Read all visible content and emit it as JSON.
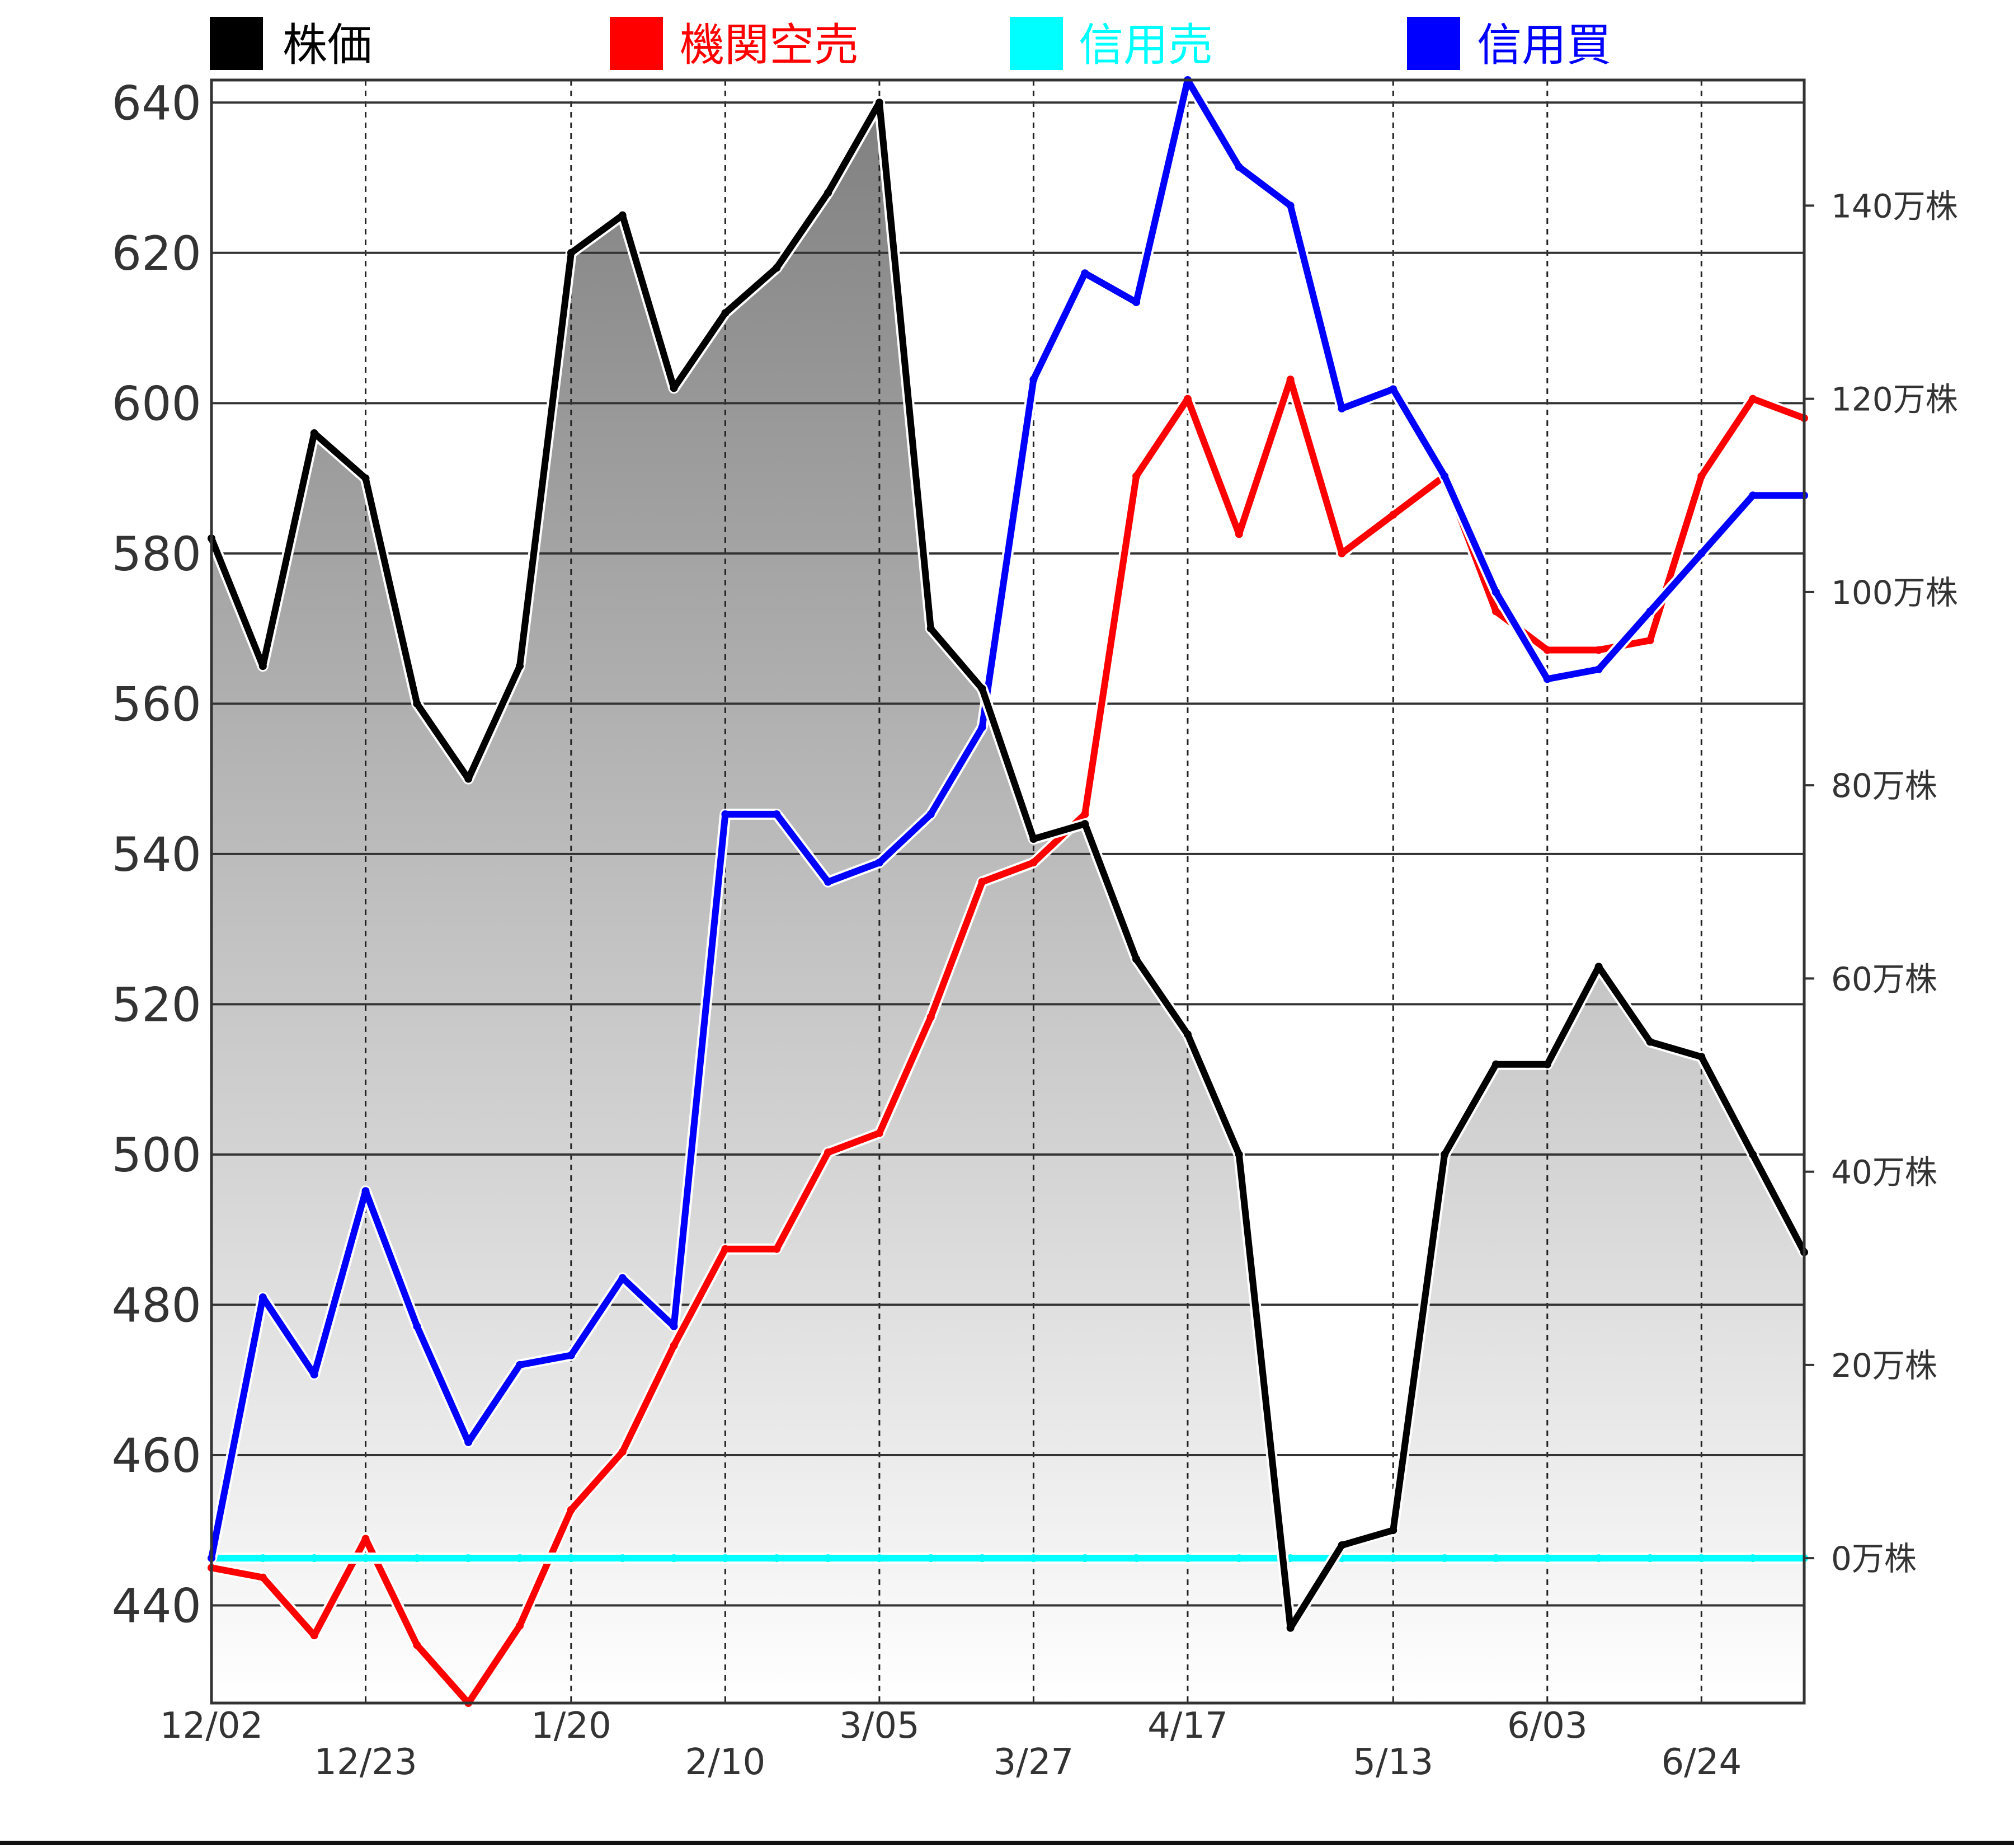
{
  "chart_data": {
    "type": "line",
    "x": [
      "12/02",
      "12/09",
      "12/16",
      "12/23",
      "12/30",
      "1/06",
      "1/13",
      "1/20",
      "1/27",
      "2/03",
      "2/10",
      "2/17",
      "2/24",
      "3/05",
      "3/12",
      "3/19",
      "3/27",
      "4/03",
      "4/10",
      "4/17",
      "4/24",
      "5/01",
      "5/06",
      "5/13",
      "5/20",
      "5/27",
      "6/03",
      "6/10",
      "6/17",
      "6/24",
      "7/01",
      "7/08"
    ],
    "x_tick_labels": [
      "12/02",
      "12/23",
      "1/20",
      "2/10",
      "3/05",
      "3/27",
      "4/17",
      "5/13",
      "6/03",
      "6/24"
    ],
    "left_axis": {
      "ylim": [
        427,
        643
      ],
      "ticks": [
        440,
        460,
        480,
        500,
        520,
        540,
        560,
        580,
        600,
        620,
        640
      ]
    },
    "right_axis": {
      "ylim": [
        -15,
        153
      ],
      "unit": "万株",
      "ticks": [
        0,
        20,
        40,
        60,
        80,
        100,
        120,
        140
      ]
    },
    "legend_position": "top",
    "series": [
      {
        "name": "株価",
        "color": "#000000",
        "axis": "left",
        "fill": "gray-gradient",
        "values": [
          582,
          565,
          596,
          590,
          560,
          550,
          565,
          620,
          625,
          602,
          612,
          618,
          628,
          640,
          570,
          562,
          542,
          544,
          526,
          516,
          500,
          437,
          448,
          450,
          500,
          512,
          512,
          525,
          515,
          513,
          500,
          487
        ]
      },
      {
        "name": "機関空売",
        "color": "#ff0000",
        "axis": "right",
        "values": [
          -1,
          -2,
          -8,
          2,
          -9,
          -15,
          -7,
          5,
          11,
          22,
          32,
          32,
          42,
          44,
          56,
          70,
          72,
          77,
          112,
          120,
          106,
          122,
          104,
          108,
          112,
          98,
          94,
          94,
          95,
          112,
          120,
          118
        ]
      },
      {
        "name": "信用売",
        "color": "#00ffff",
        "axis": "right",
        "values": [
          0,
          0,
          0,
          0,
          0,
          0,
          0,
          0,
          0,
          0,
          0,
          0,
          0,
          0,
          0,
          0,
          0,
          0,
          0,
          0,
          0,
          0,
          0,
          0,
          0,
          0,
          0,
          0,
          0,
          0,
          0,
          0
        ]
      },
      {
        "name": "信用買",
        "color": "#0000ff",
        "axis": "right",
        "values": [
          0,
          27,
          19,
          38,
          24,
          12,
          20,
          21,
          29,
          24,
          77,
          77,
          70,
          72,
          77,
          86,
          122,
          133,
          130,
          153,
          144,
          140,
          119,
          121,
          112,
          100,
          91,
          92,
          98,
          104,
          110,
          110
        ]
      }
    ]
  }
}
